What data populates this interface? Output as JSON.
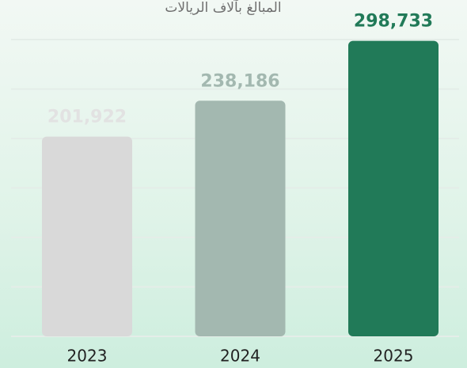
{
  "chart_data": {
    "type": "bar",
    "subtitle": "المبالغ بآلاف الريالات",
    "categories": [
      "2023",
      "2024",
      "2025"
    ],
    "values": [
      201922,
      238186,
      298733
    ],
    "value_labels": [
      "201,922",
      "238,186",
      "298,733"
    ],
    "colors": [
      "#d9d9d9",
      "#a3b8b0",
      "#217a58"
    ],
    "label_colors": [
      "#e2e2e2",
      "#a3b8b0",
      "#217a58"
    ],
    "ylim": [
      0,
      340000
    ],
    "yticks": [
      0,
      50000,
      100000,
      150000,
      200000,
      250000,
      300000
    ],
    "grid": true
  }
}
